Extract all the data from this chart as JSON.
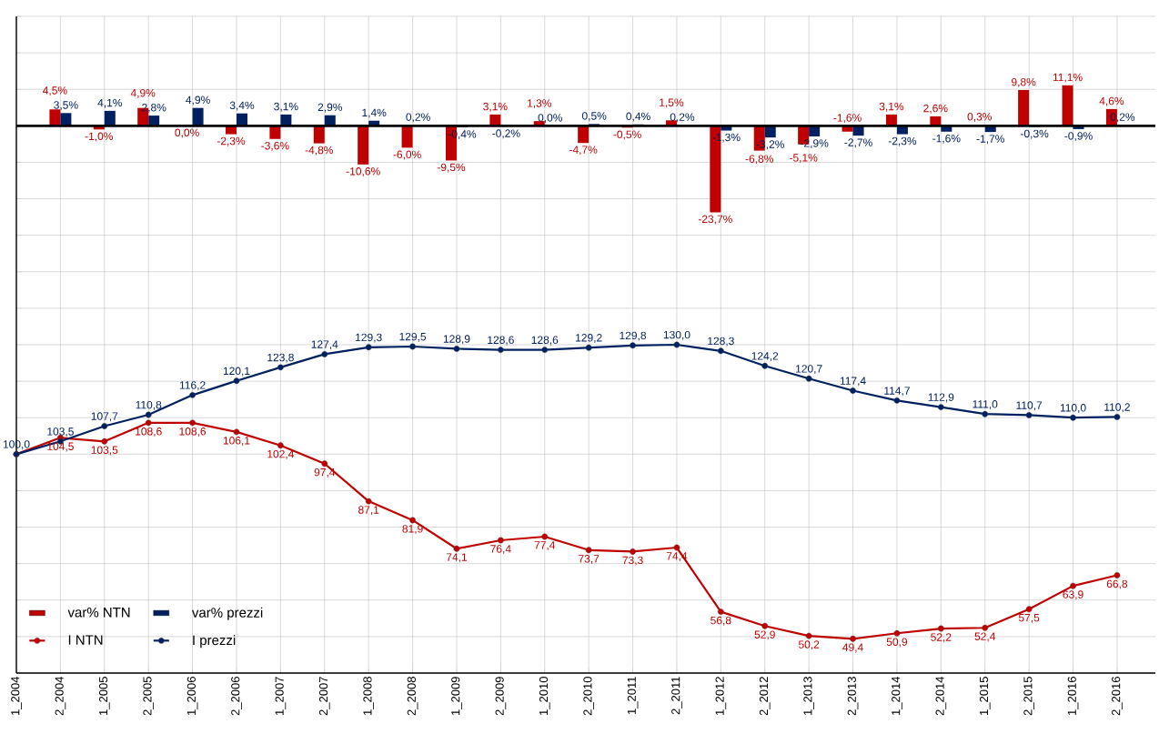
{
  "chart_data": {
    "type": "bar",
    "categories": [
      "1_2004",
      "2_2004",
      "1_2005",
      "2_2005",
      "1_2006",
      "2_2006",
      "1_2007",
      "2_2007",
      "1_2008",
      "2_2008",
      "1_2009",
      "2_2009",
      "1_2010",
      "2_2010",
      "1_2011",
      "2_2011",
      "1_2012",
      "2_2012",
      "1_2013",
      "2_2013",
      "1_2014",
      "2_2014",
      "1_2015",
      "2_2015",
      "1_2016",
      "2_2016"
    ],
    "series": [
      {
        "name": "var% NTN",
        "type": "bar",
        "color": "#c00000",
        "values": [
          null,
          4.5,
          -1.0,
          4.9,
          0.0,
          -2.3,
          -3.6,
          -4.8,
          -10.6,
          -6.0,
          -9.5,
          3.1,
          1.3,
          -4.7,
          -0.5,
          1.5,
          -23.7,
          -6.8,
          -5.1,
          -1.6,
          3.1,
          2.6,
          0.3,
          9.8,
          11.1,
          4.6
        ],
        "value_labels": [
          null,
          "4,5%",
          "-1,0%",
          "4,9%",
          "0,0%",
          "-2,3%",
          "-3,6%",
          "-4,8%",
          "-10,6%",
          "-6,0%",
          "-9,5%",
          "3,1%",
          "1,3%",
          "-4,7%",
          "-0,5%",
          "1,5%",
          "-23,7%",
          "-6,8%",
          "-5,1%",
          "-1,6%",
          "3,1%",
          "2,6%",
          "0,3%",
          "9,8%",
          "11,1%",
          "4,6%"
        ]
      },
      {
        "name": "var% prezzi",
        "type": "bar",
        "color": "#002060",
        "values": [
          null,
          3.5,
          4.1,
          2.8,
          4.9,
          3.4,
          3.1,
          2.9,
          1.4,
          0.2,
          -0.4,
          -0.2,
          0.0,
          0.5,
          0.4,
          0.2,
          -1.3,
          -3.2,
          -2.9,
          -2.7,
          -2.3,
          -1.6,
          -1.7,
          -0.3,
          -0.9,
          0.2
        ],
        "value_labels": [
          null,
          "3,5%",
          "4,1%",
          "2,8%",
          "4,9%",
          "3,4%",
          "3,1%",
          "2,9%",
          "1,4%",
          "0,2%",
          "-0,4%",
          "-0,2%",
          "0,0%",
          "0,5%",
          "0,4%",
          "0,2%",
          "-1,3%",
          "-3,2%",
          "-2,9%",
          "-2,7%",
          "-2,3%",
          "-1,6%",
          "-1,7%",
          "-0,3%",
          "-0,9%",
          "0,2%"
        ]
      },
      {
        "name": "I NTN",
        "type": "line",
        "axis": "y2",
        "color": "#c00000",
        "values": [
          100.0,
          104.5,
          103.5,
          108.6,
          108.6,
          106.1,
          102.4,
          97.4,
          87.1,
          81.9,
          74.1,
          76.4,
          77.4,
          73.7,
          73.3,
          74.4,
          56.8,
          52.9,
          50.2,
          49.4,
          50.9,
          52.2,
          52.4,
          57.5,
          63.9,
          66.8
        ],
        "value_labels": [
          null,
          "104,5",
          "103,5",
          "108,6",
          "108,6",
          "106,1",
          "102,4",
          "97,4",
          "87,1",
          "81,9",
          "74,1",
          "76,4",
          "77,4",
          "73,7",
          "73,3",
          "74,4",
          "56,8",
          "52,9",
          "50,2",
          "49,4",
          "50,9",
          "52,2",
          "52,4",
          "57,5",
          "63,9",
          "66,8"
        ]
      },
      {
        "name": "I prezzi",
        "type": "line",
        "axis": "y2",
        "color": "#002060",
        "values": [
          100.0,
          103.5,
          107.7,
          110.8,
          116.2,
          120.1,
          123.8,
          127.4,
          129.3,
          129.5,
          128.9,
          128.6,
          128.6,
          129.2,
          129.8,
          130.0,
          128.3,
          124.2,
          120.7,
          117.4,
          114.7,
          112.9,
          111.0,
          110.7,
          110.0,
          110.2
        ],
        "value_labels": [
          "100,0",
          "103,5",
          "107,7",
          "110,8",
          "116,2",
          "120,1",
          "123,8",
          "127,4",
          "129,3",
          "129,5",
          "128,9",
          "128,6",
          "128,6",
          "129,2",
          "129,8",
          "130,0",
          "128,3",
          "124,2",
          "120,7",
          "117,4",
          "114,7",
          "112,9",
          "111,0",
          "110,7",
          "110,0",
          "110,2"
        ]
      }
    ],
    "ylim": [
      -150,
      30
    ],
    "yticks": [
      {
        "value": -150,
        "label": null
      },
      {
        "value": -140,
        "label": null
      },
      {
        "value": -130,
        "label": null
      },
      {
        "value": -120,
        "label": null
      },
      {
        "value": -110,
        "label": null
      },
      {
        "value": -100,
        "label": null
      },
      {
        "value": -90,
        "label": null
      },
      {
        "value": -80,
        "label": null
      },
      {
        "value": -70,
        "label": null
      },
      {
        "value": -60,
        "label": null
      },
      {
        "value": -50,
        "label": null
      },
      {
        "value": -40,
        "label": null
      },
      {
        "value": -30,
        "label": null
      },
      {
        "value": -20,
        "label": null
      },
      {
        "value": -10,
        "label": null
      },
      {
        "value": 0,
        "label": null
      },
      {
        "value": 10,
        "label": null
      },
      {
        "value": 20,
        "label": null
      },
      {
        "value": 30,
        "label": null
      }
    ],
    "y2lim": [
      40,
      220
    ],
    "ref_lines": [
      {
        "axis": "y",
        "value": 0,
        "color": "#000000"
      }
    ],
    "grid": true,
    "legend": "bottom left",
    "marker": "circle",
    "tick_labels": "x"
  }
}
